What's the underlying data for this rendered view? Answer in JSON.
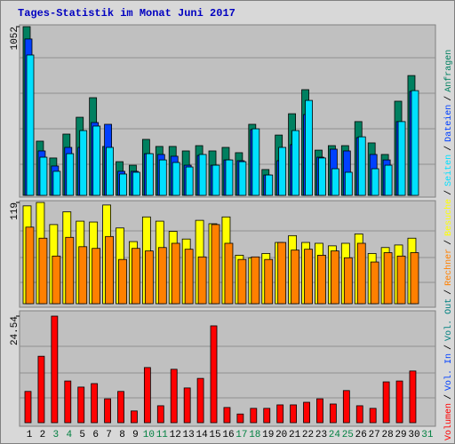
{
  "chart_data": [
    {
      "type": "bar",
      "title": "Tages-Statistik im Monat Juni 2017",
      "categories": [
        "1",
        "2",
        "3",
        "4",
        "5",
        "6",
        "7",
        "8",
        "9",
        "10",
        "11",
        "12",
        "13",
        "14",
        "15",
        "16",
        "17",
        "18",
        "19",
        "20",
        "21",
        "22",
        "23",
        "24",
        "25",
        "26",
        "27",
        "28",
        "29",
        "30",
        "31"
      ],
      "label_colors": [
        "#000000",
        "#000000",
        "#008040",
        "#008040",
        "#000000",
        "#000000",
        "#000000",
        "#000000",
        "#000000",
        "#008040",
        "#008040",
        "#000000",
        "#000000",
        "#000000",
        "#000000",
        "#000000",
        "#008040",
        "#008040",
        "#000000",
        "#000000",
        "#000000",
        "#000000",
        "#000000",
        "#008040",
        "#008040",
        "#000000",
        "#000000",
        "#000000",
        "#000000",
        "#000000",
        "#008040"
      ],
      "legend_separator": "/",
      "ylim": [
        0,
        1052
      ],
      "yticks": [
        1052
      ],
      "series": [
        {
          "name": "Anfragen",
          "color": "#008060",
          "values": [
            1052,
            338,
            233,
            382,
            487,
            609,
            305,
            210,
            188,
            349,
            305,
            305,
            277,
            310,
            277,
            299,
            266,
            443,
            161,
            376,
            509,
            659,
            282,
            310,
            310,
            460,
            327,
            255,
            587,
            747,
            null
          ]
        },
        {
          "name": "Dateien",
          "color": "#0040ff",
          "values": [
            975,
            277,
            183,
            299,
            299,
            454,
            443,
            150,
            150,
            260,
            255,
            244,
            188,
            249,
            188,
            221,
            216,
            410,
            127,
            216,
            316,
            504,
            238,
            288,
            277,
            360,
            255,
            221,
            460,
            648,
            null
          ]
        },
        {
          "name": "Seiten",
          "color": "#00e0ff",
          "values": [
            875,
            238,
            150,
            260,
            404,
            432,
            299,
            133,
            144,
            260,
            221,
            205,
            177,
            255,
            188,
            221,
            210,
            415,
            127,
            299,
            404,
            592,
            233,
            166,
            144,
            365,
            166,
            188,
            460,
            653,
            null
          ]
        }
      ]
    },
    {
      "type": "bar",
      "ylim": [
        0,
        119
      ],
      "yticks": [
        119
      ],
      "series": [
        {
          "name": "Besuche",
          "color": "#ffff00",
          "values": [
            115,
            119,
            93,
            108,
            97,
            96,
            116,
            89,
            73,
            102,
            97,
            85,
            76,
            98,
            94,
            102,
            57,
            54,
            59,
            72,
            80,
            72,
            71,
            68,
            71,
            82,
            59,
            66,
            69,
            77,
            null
          ]
        },
        {
          "name": "Rechner",
          "color": "#ff8000",
          "values": [
            90,
            77,
            56,
            78,
            67,
            65,
            79,
            52,
            65,
            62,
            66,
            71,
            64,
            55,
            93,
            71,
            52,
            55,
            52,
            72,
            63,
            64,
            57,
            62,
            54,
            71,
            49,
            60,
            56,
            60,
            null
          ]
        }
      ]
    },
    {
      "type": "bar",
      "ylim": [
        0,
        24.54
      ],
      "yticks": [
        24.54
      ],
      "series": [
        {
          "name": "Vol. Out",
          "color": "#008080",
          "values": [
            null,
            null,
            null,
            null,
            null,
            null,
            null,
            null,
            null,
            null,
            null,
            null,
            null,
            null,
            null,
            null,
            null,
            null,
            null,
            null,
            null,
            null,
            null,
            null,
            null,
            null,
            null,
            null,
            null,
            null,
            null
          ]
        },
        {
          "name": "Vol. In",
          "color": "#0040ff",
          "values": [
            null,
            null,
            null,
            null,
            null,
            null,
            null,
            null,
            null,
            null,
            null,
            null,
            null,
            null,
            null,
            null,
            null,
            null,
            null,
            null,
            null,
            null,
            null,
            null,
            null,
            null,
            null,
            null,
            null,
            null,
            null
          ]
        },
        {
          "name": "Volumen",
          "color": "#ff0000",
          "values": [
            7.2,
            15.3,
            24.54,
            9.6,
            8.2,
            9.0,
            5.5,
            7.2,
            2.7,
            12.7,
            3.9,
            12.3,
            8.0,
            10.2,
            22.3,
            3.5,
            2.0,
            3.3,
            3.3,
            4.1,
            4.1,
            4.7,
            5.5,
            4.3,
            7.4,
            3.9,
            3.3,
            9.4,
            9.6,
            11.9,
            null
          ]
        }
      ]
    }
  ]
}
